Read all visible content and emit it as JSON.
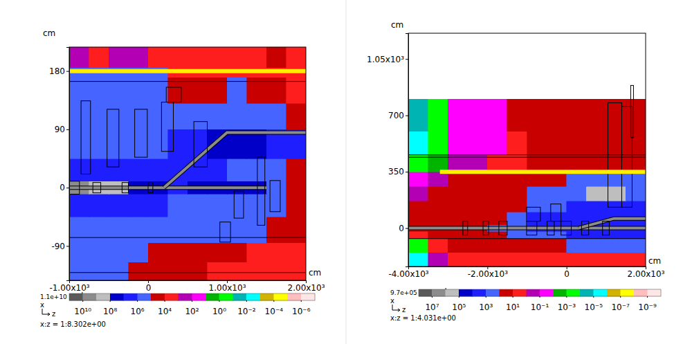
{
  "chart_data": [
    {
      "type": "heatmap",
      "xlabel": "cm",
      "ylabel": "cm",
      "axis_names": {
        "vertical": "x",
        "horizontal": "z"
      },
      "aspect": "x:z = 1:8.302e+00",
      "xlim": [
        -1000,
        2000
      ],
      "xticks": [
        {
          "value": -1000,
          "label": "-1.00x10³"
        },
        0,
        {
          "value": 1000,
          "label": "1.00x10³"
        },
        {
          "value": 2000,
          "label": "2.00x10³"
        }
      ],
      "ylim": [
        -143,
        217
      ],
      "yticks": [
        -90,
        0,
        90,
        180
      ],
      "col_edges": [
        -1000,
        -750,
        -500,
        -250,
        0,
        250,
        500,
        750,
        1000,
        1250,
        1500,
        1750,
        2000
      ],
      "row_edges": [
        -143,
        -115,
        -85,
        -45,
        -10,
        10,
        45,
        90,
        130,
        170,
        185,
        217
      ],
      "cells": [
        [
          300000.0,
          300000.0,
          200000.0,
          20000.0,
          20000.0,
          20000.0,
          20000.0,
          5000.0,
          5000.0,
          5000.0,
          5000.0,
          5000.0
        ],
        [
          500000.0,
          500000.0,
          500000.0,
          400000.0,
          30000.0,
          20000.0,
          20000.0,
          20000.0,
          20000.0,
          10000.0,
          10000.0,
          10000.0
        ],
        [
          1000000.0,
          1000000.0,
          1000000.0,
          1000000.0,
          800000.0,
          500000.0,
          500000.0,
          500000.0,
          400000.0,
          300000.0,
          20000.0,
          20000.0
        ],
        [
          5000000.0,
          5000000.0,
          3000000.0,
          2000000.0,
          2000000.0,
          1000000.0,
          1000000.0,
          1000000.0,
          800000.0,
          500000.0,
          300000.0,
          20000.0
        ],
        [
          5000000000.0,
          1000000000.0,
          200000000.0,
          50000000.0,
          20000000.0,
          10000000.0,
          20000000.0,
          30000000.0,
          30000000.0,
          20000000.0,
          500000.0,
          30000.0
        ],
        [
          5000000.0,
          4000000.0,
          3000000.0,
          2000000.0,
          2000000.0,
          2000000.0,
          2000000.0,
          2000000.0,
          1000000.0,
          500000.0,
          400000.0,
          20000.0
        ],
        [
          1000000.0,
          1000000.0,
          1000000.0,
          1000000.0,
          1000000.0,
          2000000.0,
          5000000.0,
          30000000.0,
          30000000.0,
          20000000.0,
          10000000.0,
          5000000.0
        ],
        [
          1000000.0,
          800000.0,
          800000.0,
          1000000.0,
          800000.0,
          400000.0,
          300000.0,
          300000.0,
          500000.0,
          500000.0,
          400000.0,
          20000.0
        ],
        [
          800000.0,
          600000.0,
          500000.0,
          500000.0,
          400000.0,
          20000.0,
          20000.0,
          30000.0,
          400000.0,
          30000.0,
          20000.0,
          10000.0
        ],
        [
          600000.0,
          500000.0,
          500000.0,
          400000.0,
          400000.0,
          10000.0,
          10000.0,
          10000.0,
          10000.0,
          10000.0,
          10000.0,
          10000.0
        ],
        [
          200.0,
          5000.0,
          300.0,
          200.0,
          5000.0,
          10000.0,
          10000.0,
          10000.0,
          10000.0,
          10000.0,
          20000.0,
          10000.0
        ]
      ],
      "colorbar": {
        "range": [
          1e-07,
          100000000000.0
        ],
        "ticks": [
          {
            "value": 10000000000.0,
            "label": "10¹⁰"
          },
          {
            "value": 100000000.0,
            "label": "10⁸"
          },
          {
            "value": 1000000.0,
            "label": "10⁶"
          },
          {
            "value": 10000.0,
            "label": "10⁴"
          },
          {
            "value": 100.0,
            "label": "10²"
          },
          {
            "value": 1,
            "label": "10⁰"
          },
          {
            "value": 0.01,
            "label": "10⁻²"
          },
          {
            "value": 0.0001,
            "label": "10⁻⁴"
          },
          {
            "value": 1e-06,
            "label": "10⁻⁶"
          }
        ],
        "max": {
          "value": 11000000000.0,
          "label": "1.1e+10"
        },
        "colors": [
          "#5a5a5a",
          "#8c8c8c",
          "#bebebe",
          "#0000c8",
          "#1e1eff",
          "#4664ff",
          "#c80000",
          "#ff1e1e",
          "#b400b4",
          "#ff00ff",
          "#00b400",
          "#00ff00",
          "#00b4b4",
          "#00ffff",
          "#d2b400",
          "#ffff00",
          "#ffbebe",
          "#ffe6e6"
        ]
      },
      "geometry": {
        "lines": [
          164,
          -77,
          -131
        ],
        "boxes": [
          [
            -850,
            -730,
            21,
            134
          ],
          [
            -520,
            -370,
            32,
            121
          ],
          [
            -170,
            -10,
            47,
            121
          ],
          [
            170,
            320,
            56,
            132
          ],
          [
            230,
            420,
            132,
            155
          ],
          [
            580,
            750,
            32,
            102
          ],
          [
            910,
            1045,
            -84,
            -53
          ],
          [
            1090,
            1210,
            -47,
            -5
          ],
          [
            1385,
            1480,
            -58,
            47
          ],
          [
            1545,
            1675,
            -37,
            11
          ],
          [
            -1000,
            -870,
            -10,
            10
          ],
          [
            -700,
            -600,
            -8,
            8
          ],
          [
            -330,
            -250,
            -8,
            8
          ],
          [
            0,
            60,
            -8,
            8
          ]
        ],
        "pipes": [
          [
            [
              -1000,
              0
            ],
            [
              1500,
              0
            ]
          ],
          [
            [
              200,
              0
            ],
            [
              1000,
              85
            ],
            [
              2000,
              85
            ]
          ]
        ]
      },
      "highlights": [
        {
          "x": 180,
          "z": [
            -1000,
            2000
          ]
        }
      ]
    },
    {
      "type": "heatmap",
      "xlabel": "cm",
      "ylabel": "cm",
      "axis_names": {
        "vertical": "x",
        "horizontal": "z"
      },
      "aspect": "x:z = 1:4.031e+00",
      "xlim": [
        -4000,
        2000
      ],
      "xticks": [
        {
          "value": -4000,
          "label": "-4.00x10³"
        },
        {
          "value": -2000,
          "label": "-2.00x10³"
        },
        0,
        {
          "value": 2000,
          "label": "2.00x10³"
        }
      ],
      "ylim": [
        -238,
        1210
      ],
      "yticks": [
        0,
        350,
        700,
        {
          "value": 1050,
          "label": "1.05x10³"
        }
      ],
      "col_edges": [
        -4000,
        -3500,
        -3000,
        -2500,
        -2000,
        -1500,
        -1000,
        -500,
        0,
        500,
        1000,
        1500,
        2000
      ],
      "row_edges": [
        -238,
        -150,
        -65,
        -20,
        20,
        100,
        170,
        260,
        350,
        455,
        600,
        800,
        1210
      ],
      "cells": [
        [
          1e-05,
          0.3,
          5.0,
          5.0,
          5.0,
          5.0,
          5.0,
          5.0,
          5.0,
          5.0,
          5.0,
          5.0
        ],
        [
          0.001,
          5.0,
          20.0,
          20.0,
          20.0,
          20.0,
          20.0,
          50.0,
          300.0,
          300.0,
          300.0,
          300.0
        ],
        [
          3.0,
          30.0,
          50.0,
          50.0,
          50.0,
          200.0,
          500.0,
          1000.0,
          2000.0,
          2000.0,
          2000.0,
          2000.0
        ],
        [
          50.0,
          50.0,
          60.0,
          80.0,
          300.0,
          1000.0,
          5000.0,
          5000.0,
          10000.0,
          10000.0,
          10000.0,
          5000.0
        ],
        [
          30.0,
          50.0,
          50.0,
          50.0,
          80.0,
          300.0,
          2000.0,
          3000.0,
          5000.0,
          5000.0,
          5000.0,
          3000.0
        ],
        [
          20.0,
          30.0,
          30.0,
          30.0,
          50.0,
          80.0,
          200.0,
          1000.0,
          2000.0,
          2000.0,
          3000.0,
          2000.0
        ],
        [
          0.5,
          20.0,
          20.0,
          30.0,
          30.0,
          80.0,
          200.0,
          500.0,
          1000.0,
          200000.0,
          200000.0,
          1000.0
        ],
        [
          0.03,
          1.0,
          20.0,
          20.0,
          30.0,
          50.0,
          50.0,
          50.0,
          300.0,
          1000.0,
          1000.0,
          500.0
        ],
        [
          0.001,
          0.01,
          0.5,
          0.5,
          3.0,
          10.0,
          20.0,
          20.0,
          20.0,
          20.0,
          30.0,
          30.0
        ],
        [
          1e-05,
          0.001,
          0.1,
          0.05,
          0.05,
          10.0,
          20.0,
          20.0,
          20.0,
          20.0,
          20.0,
          20.0
        ],
        [
          0.0001,
          0.001,
          0.03,
          0.05,
          0.05,
          20.0,
          20.0,
          20.0,
          20.0,
          20.0,
          20.0,
          20.0
        ],
        [
          null,
          null,
          null,
          null,
          null,
          null,
          null,
          null,
          null,
          null,
          null,
          null
        ]
      ],
      "colorbar": {
        "range": [
          1e-10,
          100000000.0
        ],
        "ticks": [
          {
            "value": 10000000.0,
            "label": "10⁷"
          },
          {
            "value": 100000.0,
            "label": "10⁵"
          },
          {
            "value": 1000.0,
            "label": "10³"
          },
          {
            "value": 10.0,
            "label": "10¹"
          },
          {
            "value": 0.1,
            "label": "10⁻¹"
          },
          {
            "value": 0.001,
            "label": "10⁻³"
          },
          {
            "value": 1e-05,
            "label": "10⁻⁵"
          },
          {
            "value": 1e-07,
            "label": "10⁻⁷"
          },
          {
            "value": 1e-09,
            "label": "10⁻⁹"
          }
        ],
        "max": {
          "value": 970000.0,
          "label": "9.7e+05"
        },
        "colors": [
          "#5a5a5a",
          "#8c8c8c",
          "#bebebe",
          "#0000c8",
          "#1e1eff",
          "#4664ff",
          "#c80000",
          "#ff1e1e",
          "#b400b4",
          "#ff00ff",
          "#00b400",
          "#00ff00",
          "#00b4b4",
          "#00ffff",
          "#d2b400",
          "#ffff00",
          "#ffbebe",
          "#ffe6e6"
        ]
      },
      "geometry": {
        "lines": [
          455,
          440,
          -65
        ],
        "boxes": [
          [
            1047,
            1396,
            130,
            778
          ],
          [
            1396,
            1658,
            130,
            756
          ],
          [
            1623,
            1693,
            562,
            886
          ],
          [
            -2620,
            -2500,
            -43,
            43
          ],
          [
            -2110,
            -1970,
            -43,
            43
          ],
          [
            -1710,
            -1500,
            -43,
            43
          ],
          [
            -1010,
            -750,
            -43,
            43
          ],
          [
            -490,
            -310,
            -43,
            43
          ],
          [
            -140,
            120,
            -43,
            43
          ],
          [
            380,
            560,
            -43,
            43
          ],
          [
            910,
            1080,
            -43,
            43
          ],
          [
            -1010,
            -660,
            43,
            130
          ],
          [
            -400,
            -140,
            43,
            150
          ]
        ],
        "pipes": [
          [
            [
              -4000,
              0
            ],
            [
              2000,
              0
            ]
          ],
          [
            [
              300,
              0
            ],
            [
              1200,
              60
            ],
            [
              2000,
              60
            ]
          ]
        ]
      },
      "highlights": [
        {
          "x": 350,
          "z": [
            -3200,
            2000
          ]
        }
      ]
    }
  ]
}
